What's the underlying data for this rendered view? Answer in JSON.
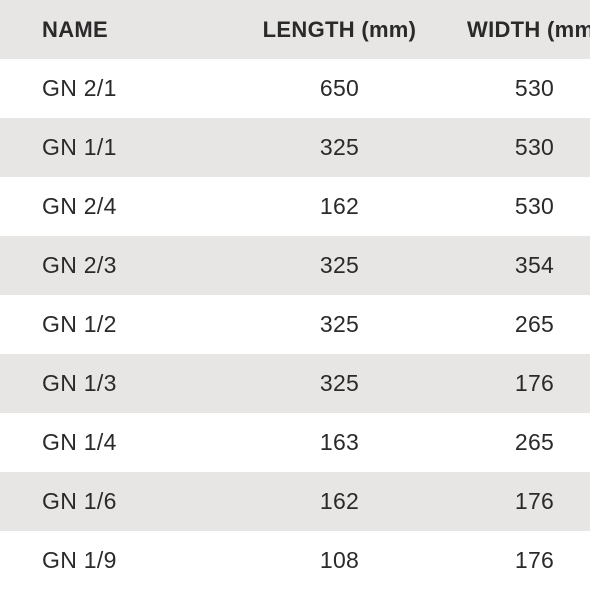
{
  "colors": {
    "stripe_bg": "#e7e6e4",
    "text": "#2a2a2a"
  },
  "table": {
    "columns": [
      "NAME",
      "LENGTH (mm)",
      "WIDTH (mm)"
    ],
    "rows": [
      {
        "name": "GN 2/1",
        "length": "650",
        "width": "530"
      },
      {
        "name": "GN 1/1",
        "length": "325",
        "width": "530"
      },
      {
        "name": "GN 2/4",
        "length": "162",
        "width": "530"
      },
      {
        "name": "GN 2/3",
        "length": "325",
        "width": "354"
      },
      {
        "name": "GN 1/2",
        "length": "325",
        "width": "265"
      },
      {
        "name": "GN 1/3",
        "length": "325",
        "width": "176"
      },
      {
        "name": "GN 1/4",
        "length": "163",
        "width": "265"
      },
      {
        "name": "GN 1/6",
        "length": "162",
        "width": "176"
      },
      {
        "name": "GN 1/9",
        "length": "108",
        "width": "176"
      }
    ]
  }
}
